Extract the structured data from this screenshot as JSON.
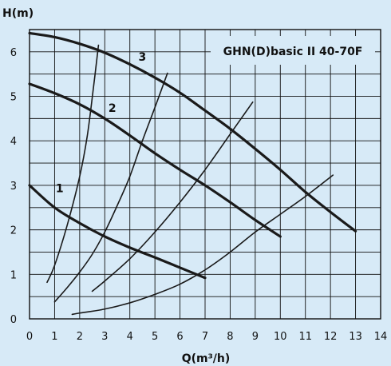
{
  "chart_data": {
    "type": "line",
    "title": "GHN(D)basic II 40-70F",
    "xlabel": "Q(m³/h)",
    "ylabel": "H(m)",
    "xlim": [
      0,
      14
    ],
    "ylim": [
      0,
      6.5
    ],
    "x_ticks": [
      "0",
      "1",
      "2",
      "3",
      "4",
      "5",
      "6",
      "7",
      "8",
      "9",
      "10",
      "11",
      "12",
      "13",
      "14"
    ],
    "y_ticks": [
      "0",
      "1",
      "2",
      "3",
      "4",
      "5",
      "6"
    ],
    "x_grid_step": 1,
    "y_grid_step": 0.5,
    "grid": true,
    "series": [
      {
        "name": "1",
        "kind": "pump_curve",
        "label_at": [
          1.2,
          2.85
        ],
        "x": [
          0,
          1,
          2,
          3,
          4,
          5,
          6,
          7
        ],
        "y": [
          3.0,
          2.5,
          2.15,
          1.85,
          1.6,
          1.38,
          1.15,
          0.92
        ]
      },
      {
        "name": "2",
        "kind": "pump_curve",
        "label_at": [
          3.3,
          4.65
        ],
        "x": [
          0,
          1,
          2,
          3,
          4,
          5,
          6,
          7,
          8,
          9,
          10
        ],
        "y": [
          5.28,
          5.07,
          4.82,
          4.5,
          4.12,
          3.72,
          3.35,
          3.0,
          2.62,
          2.22,
          1.85
        ]
      },
      {
        "name": "3",
        "kind": "pump_curve",
        "label_at": [
          4.5,
          5.8
        ],
        "x": [
          0,
          1,
          2,
          3,
          4,
          5,
          6,
          7,
          8,
          9,
          10,
          11,
          12,
          13
        ],
        "y": [
          6.42,
          6.33,
          6.18,
          5.98,
          5.72,
          5.42,
          5.08,
          4.68,
          4.27,
          3.82,
          3.35,
          2.85,
          2.4,
          1.97
        ]
      },
      {
        "kind": "system_curve",
        "x": [
          0.7,
          1.0,
          1.5,
          2.0,
          2.3,
          2.55,
          2.75
        ],
        "y": [
          0.82,
          1.2,
          2.1,
          3.2,
          4.1,
          5.2,
          6.15
        ]
      },
      {
        "kind": "system_curve",
        "x": [
          1.0,
          1.5,
          2.0,
          2.5,
          3.0,
          3.5,
          4.0,
          4.5,
          5.0,
          5.5
        ],
        "y": [
          0.38,
          0.7,
          1.05,
          1.45,
          1.95,
          2.55,
          3.2,
          4.0,
          4.75,
          5.52
        ]
      },
      {
        "kind": "system_curve",
        "x": [
          2.5,
          3,
          4,
          5,
          6,
          7,
          8,
          8.5,
          8.9
        ],
        "y": [
          0.62,
          0.85,
          1.35,
          1.95,
          2.62,
          3.35,
          4.15,
          4.55,
          4.87
        ]
      },
      {
        "kind": "system_curve",
        "x": [
          1.7,
          2,
          3,
          4,
          5,
          6,
          7,
          8,
          9,
          10,
          11,
          12.1
        ],
        "y": [
          0.1,
          0.13,
          0.22,
          0.36,
          0.55,
          0.78,
          1.1,
          1.5,
          1.95,
          2.35,
          2.75,
          3.23
        ]
      }
    ]
  }
}
